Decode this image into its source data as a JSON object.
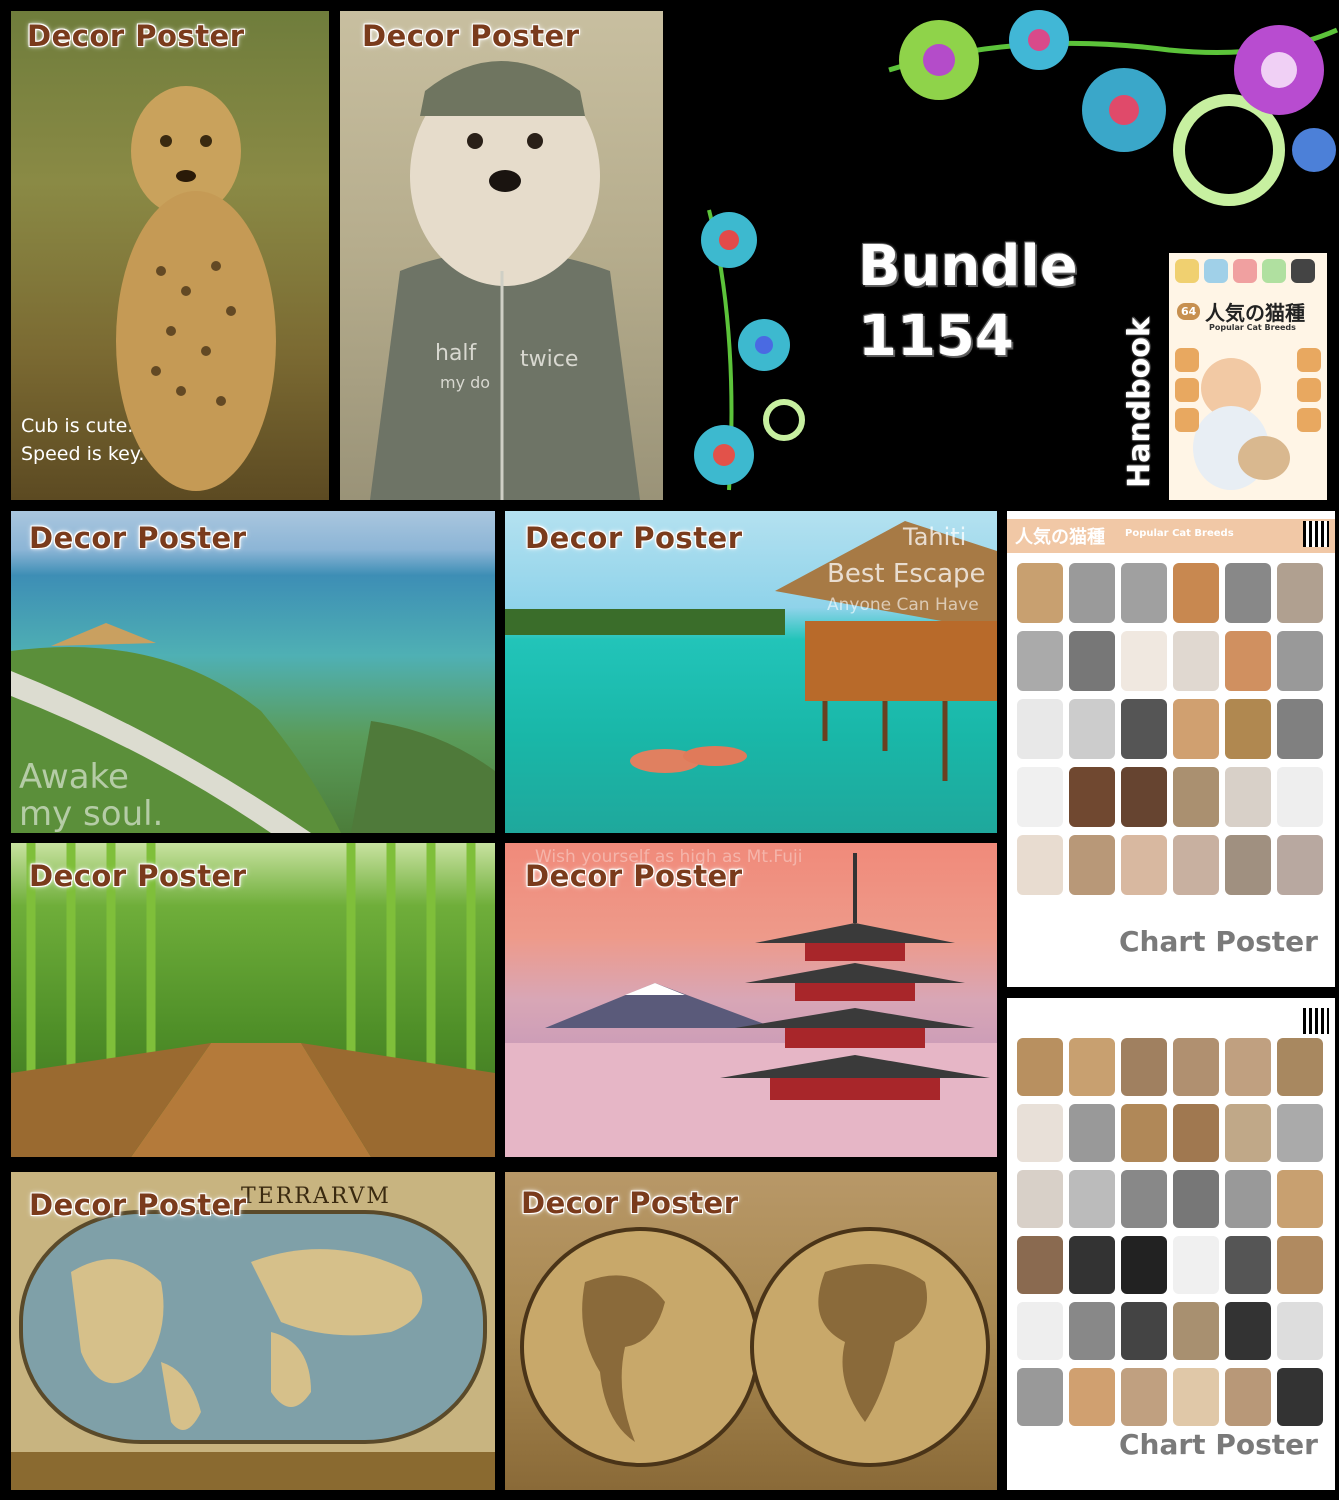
{
  "bundle": {
    "line1": "Bundle",
    "line2": "1154"
  },
  "handbook": {
    "side_label": "Handbook",
    "badge": "64",
    "title_jp": "人気の猫種",
    "title_en": "Popular Cat Breeds"
  },
  "posters": {
    "cheetah": {
      "label": "Decor Poster",
      "caption1": "Cub is cute.",
      "caption2": "Speed is key."
    },
    "dog": {
      "label": "Decor Poster",
      "shirt1": "half",
      "shirt2": "twice",
      "shirt3": "my do"
    },
    "coast": {
      "label": "Decor Poster",
      "caption1": "Awake",
      "caption2": "my soul."
    },
    "tahiti": {
      "label": "Decor Poster",
      "caption1": "Tahiti",
      "caption2": "Best Escape",
      "caption3": "Anyone Can Have"
    },
    "bamboo": {
      "label": "Decor Poster"
    },
    "fuji": {
      "label": "Decor Poster",
      "caption1": "Wish yourself as high as Mt.Fuji"
    },
    "map1": {
      "label": "Decor Poster",
      "banner": "TERRARVM"
    },
    "map2": {
      "label": "Decor Poster"
    }
  },
  "charts": {
    "chart1": {
      "label": "Chart Poster",
      "title_jp": "人気の猫種",
      "title_en": "Popular Cat Breeds"
    },
    "chart2": {
      "label": "Chart Poster"
    }
  },
  "colors": {
    "background": "#000000",
    "label_text": "#7a3b1c",
    "chart_label": "#7a7a7a"
  }
}
